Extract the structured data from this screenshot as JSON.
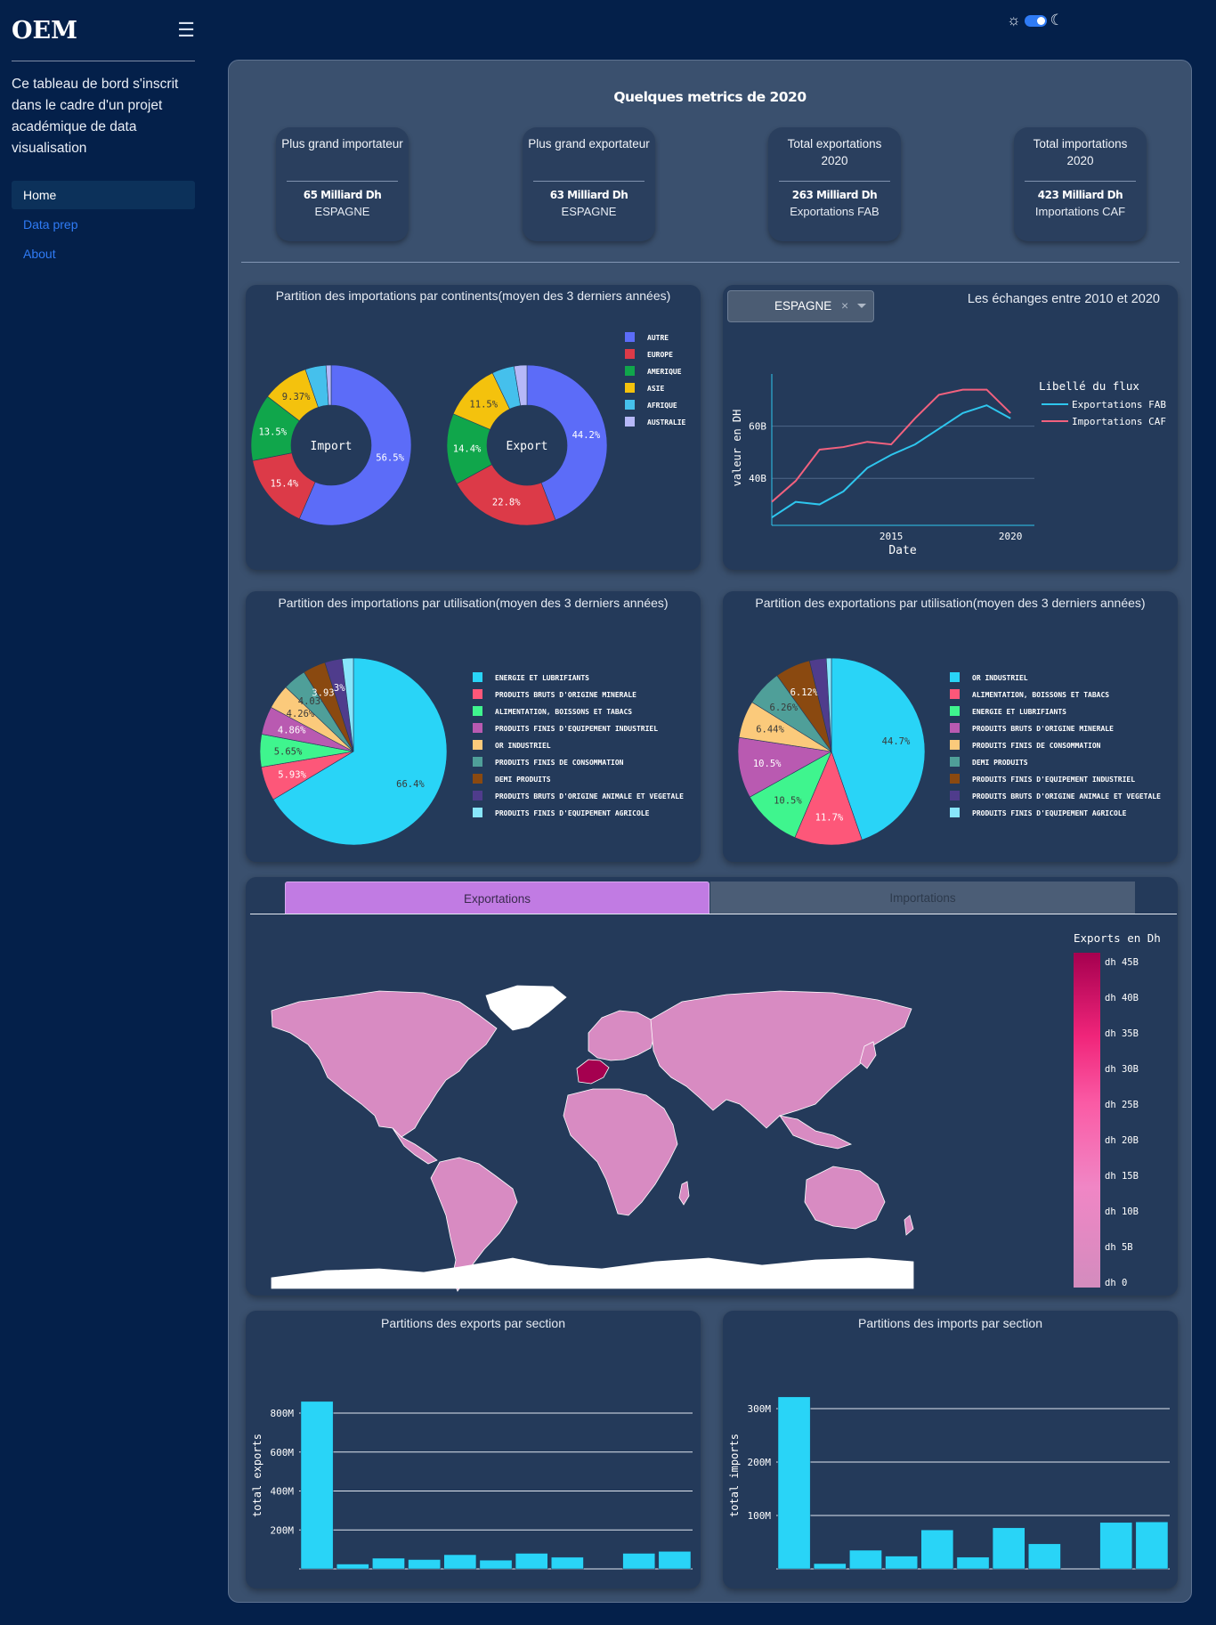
{
  "sidebar": {
    "brand": "OEM",
    "description": "Ce tableau de bord s'inscrit dans le cadre d'un projet académique de data visualisation",
    "nav": [
      {
        "label": "Home",
        "active": true
      },
      {
        "label": "Data prep",
        "active": false
      },
      {
        "label": "About",
        "active": false
      }
    ]
  },
  "theme": {
    "sun_icon": "sun-icon",
    "moon_icon": "moon-icon",
    "dark_mode": true
  },
  "metrics": {
    "title": "Quelques metrics de 2020",
    "cards": [
      {
        "label": "Plus grand importateur",
        "value": "65 Milliard Dh",
        "sub": "ESPAGNE"
      },
      {
        "label": "Plus grand exportateur",
        "value": "63 Milliard Dh",
        "sub": "ESPAGNE"
      },
      {
        "label": "Total exportations 2020",
        "value": "263 Milliard Dh",
        "sub": "Exportations FAB"
      },
      {
        "label": "Total importations 2020",
        "value": "423 Milliard Dh",
        "sub": "Importations CAF"
      }
    ]
  },
  "continents_card": {
    "title": "Partition des importations par continents(moyen des 3 derniers années)"
  },
  "exchanges_card": {
    "title": "Les échanges entre 2010 et 2020",
    "dropdown_value": "ESPAGNE",
    "clear_icon": "×"
  },
  "usage_imports_card": {
    "title": "Partition des importations par utilisation(moyen des 3 derniers années)"
  },
  "usage_exports_card": {
    "title": "Partition des exportations par utilisation(moyen des 3 derniers années)"
  },
  "map_card": {
    "tabs": [
      "Exportations",
      "Importations"
    ],
    "active_tab": "Exportations",
    "colorbar_title": "Exports en Dh",
    "colorbar_ticks": [
      "dh 45B",
      "dh 40B",
      "dh 35B",
      "dh 30B",
      "dh 25B",
      "dh 20B",
      "dh 15B",
      "dh 10B",
      "dh 5B",
      "dh 0"
    ],
    "highlight_color": "#a5004f",
    "land_color": "#d88bc2"
  },
  "exports_section_card": {
    "title": "Partitions des exports par section"
  },
  "imports_section_card": {
    "title": "Partitions des imports par section"
  },
  "chart_data": [
    {
      "type": "pie",
      "hole": true,
      "center_label": "Import",
      "labels": [
        "AUTRE",
        "EUROPE",
        "AMERIQUE",
        "ASIE",
        "AFRIQUE",
        "AUSTRALIE"
      ],
      "values": [
        56.5,
        15.4,
        13.5,
        9.37,
        4.2,
        1.03
      ],
      "value_labels": [
        "56.5%",
        "15.4%",
        "13.5%",
        "9.37%",
        "",
        ""
      ],
      "colors": [
        "#5c6cf8",
        "#dc3a48",
        "#10a64b",
        "#f4c20d",
        "#45c0ec",
        "#b6b8f8"
      ],
      "legend_position": "right"
    },
    {
      "type": "pie",
      "hole": true,
      "center_label": "Export",
      "labels": [
        "AUTRE",
        "EUROPE",
        "AMERIQUE",
        "ASIE",
        "AFRIQUE",
        "AUSTRALIE"
      ],
      "values": [
        44.2,
        22.8,
        14.4,
        11.5,
        4.5,
        2.6
      ],
      "value_labels": [
        "44.2%",
        "22.8%",
        "14.4%",
        "11.5%",
        "",
        ""
      ],
      "colors": [
        "#5c6cf8",
        "#dc3a48",
        "#10a64b",
        "#f4c20d",
        "#45c0ec",
        "#b6b8f8"
      ],
      "legend_position": "right"
    },
    {
      "type": "line",
      "x": [
        2010,
        2011,
        2012,
        2013,
        2014,
        2015,
        2016,
        2017,
        2018,
        2019,
        2020,
        2021
      ],
      "series": [
        {
          "name": "Exportations FAB",
          "color": "#2ec6ee",
          "values": [
            25,
            31,
            30,
            35,
            44,
            49,
            53,
            59,
            65,
            68,
            63,
            null
          ]
        },
        {
          "name": "Importations CAF",
          "color": "#f2617e",
          "values": [
            31,
            39,
            51,
            52,
            54,
            53,
            63,
            72,
            74,
            74,
            65,
            null
          ]
        }
      ],
      "legend_title": "Libellé du flux",
      "xlabel": "Date",
      "ylabel": "valeur en DH",
      "x_ticks": [
        "2015",
        "2020"
      ],
      "y_ticks": [
        "40B",
        "60B"
      ],
      "xlim": [
        2010,
        2021
      ],
      "ylim": [
        22,
        80
      ],
      "grid": true,
      "legend_position": "top-right"
    },
    {
      "type": "pie",
      "labels": [
        "ENERGIE  ET  LUBRIFIANTS",
        "PRODUITS BRUTS D'ORIGINE MINERALE",
        "ALIMENTATION, BOISSONS ET TABACS",
        "PRODUITS FINIS D'EQUIPEMENT INDUSTRIEL",
        "OR INDUSTRIEL",
        "PRODUITS FINIS DE CONSOMMATION",
        "DEMI  PRODUITS",
        "PRODUITS BRUTS D'ORIGINE ANIMALE ET VEGETALE",
        "PRODUITS FINIS D'EQUIPEMENT AGRICOLE"
      ],
      "values": [
        66.4,
        5.93,
        5.65,
        4.86,
        4.26,
        4.03,
        3.93,
        3.0,
        1.94
      ],
      "value_labels": [
        "66.4%",
        "5.93%",
        "5.65%",
        "4.86%",
        "4.26%",
        "4.03%",
        "3.93%",
        "3%",
        ""
      ],
      "colors": [
        "#29d4f7",
        "#fd5779",
        "#3ff58e",
        "#b95ab1",
        "#fbca7b",
        "#4f9f99",
        "#8a4910",
        "#4f3c8c",
        "#88e6fb"
      ],
      "legend_position": "right"
    },
    {
      "type": "pie",
      "labels": [
        "OR INDUSTRIEL",
        "ALIMENTATION, BOISSONS ET TABACS",
        "ENERGIE  ET  LUBRIFIANTS",
        "PRODUITS BRUTS D'ORIGINE MINERALE",
        "PRODUITS FINIS DE CONSOMMATION",
        "DEMI  PRODUITS",
        "PRODUITS FINIS D'EQUIPEMENT INDUSTRIEL",
        "PRODUITS BRUTS D'ORIGINE ANIMALE ET VEGETALE",
        "PRODUITS FINIS D'EQUIPEMENT AGRICOLE"
      ],
      "values": [
        44.7,
        11.7,
        10.5,
        10.5,
        6.44,
        6.26,
        6.12,
        2.9,
        0.88
      ],
      "value_labels": [
        "44.7%",
        "11.7%",
        "10.5%",
        "10.5%",
        "6.44%",
        "6.26%",
        "6.12%",
        "",
        ""
      ],
      "slice_colors": [
        "#29d4f7",
        "#fd5779",
        "#3ff58e",
        "#b95ab1",
        "#fbca7b",
        "#4f9f99",
        "#8a4910",
        "#4f3c8c",
        "#88e6fb"
      ],
      "legend_position": "right"
    },
    {
      "type": "bar",
      "values": [
        860,
        25,
        55,
        48,
        73,
        45,
        80,
        60,
        0,
        80,
        90
      ],
      "color": "#29d4f7",
      "ylabel": "total exports",
      "y_ticks": [
        "200M",
        "400M",
        "600M",
        "800M"
      ],
      "ylim": [
        0,
        960
      ],
      "grid": true
    },
    {
      "type": "bar",
      "values": [
        322,
        10,
        35,
        24,
        73,
        22,
        77,
        47,
        0,
        87,
        88
      ],
      "color": "#29d4f7",
      "ylabel": "total imports",
      "y_ticks": [
        "100M",
        "200M",
        "300M"
      ],
      "ylim": [
        0,
        350
      ],
      "grid": true
    }
  ]
}
